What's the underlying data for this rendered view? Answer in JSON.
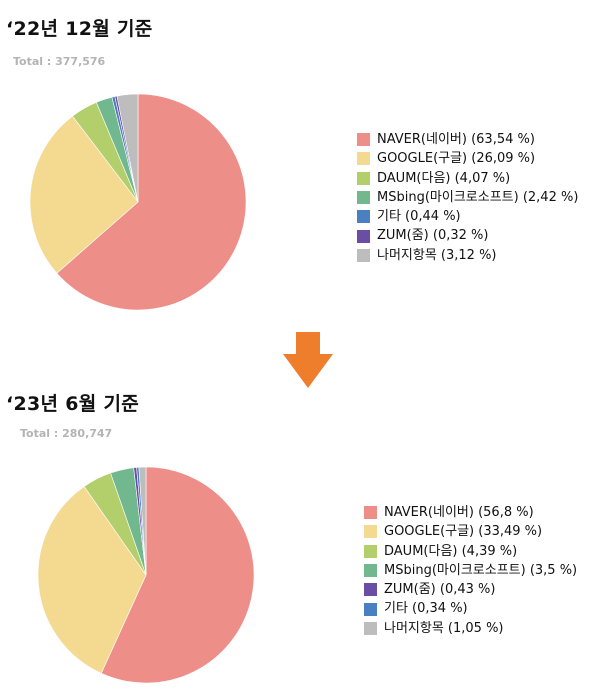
{
  "chart_data": [
    {
      "type": "pie",
      "title": "‘22년 12월 기준",
      "total_label": "Total : 377,576",
      "slices": [
        {
          "label": "NAVER(네이버)",
          "value": 63.54,
          "text": "NAVER(네이버) (63,54 %)",
          "color": "#ee8e89"
        },
        {
          "label": "GOOGLE(구글)",
          "value": 26.09,
          "text": "GOOGLE(구글) (26,09 %)",
          "color": "#f4d990"
        },
        {
          "label": "DAUM(다음)",
          "value": 4.07,
          "text": "DAUM(다음) (4,07 %)",
          "color": "#b2cf6c"
        },
        {
          "label": "MSbing(마이크로소프트)",
          "value": 2.42,
          "text": "MSbing(마이크로소프트) (2,42 %)",
          "color": "#72b88e"
        },
        {
          "label": "기타",
          "value": 0.44,
          "text": "기타 (0,44 %)",
          "color": "#4a7fc1"
        },
        {
          "label": "ZUM(줌)",
          "value": 0.32,
          "text": "ZUM(줌) (0,32 %)",
          "color": "#6b4ea3"
        },
        {
          "label": "나머지항목",
          "value": 3.12,
          "text": "나머지항목 (3,12 %)",
          "color": "#bdbdbd"
        }
      ]
    },
    {
      "type": "pie",
      "title": "‘23년 6월 기준",
      "total_label": "Total : 280,747",
      "slices": [
        {
          "label": "NAVER(네이버)",
          "value": 56.8,
          "text": "NAVER(네이버) (56,8 %)",
          "color": "#ee8e89"
        },
        {
          "label": "GOOGLE(구글)",
          "value": 33.49,
          "text": "GOOGLE(구글) (33,49 %)",
          "color": "#f4d990"
        },
        {
          "label": "DAUM(다음)",
          "value": 4.39,
          "text": "DAUM(다음) (4,39 %)",
          "color": "#b2cf6c"
        },
        {
          "label": "MSbing(마이크로소프트)",
          "value": 3.5,
          "text": "MSbing(마이크로소프트) (3,5 %)",
          "color": "#72b88e"
        },
        {
          "label": "ZUM(줌)",
          "value": 0.43,
          "text": "ZUM(줌) (0,43 %)",
          "color": "#6b4ea3"
        },
        {
          "label": "기타",
          "value": 0.34,
          "text": "기타 (0,34 %)",
          "color": "#4a7fc1"
        },
        {
          "label": "나머지항목",
          "value": 1.05,
          "text": "나머지항목 (1,05 %)",
          "color": "#bdbdbd"
        }
      ]
    }
  ],
  "arrow": {
    "icon": "down-arrow-icon",
    "color": "#ee7d2c"
  }
}
